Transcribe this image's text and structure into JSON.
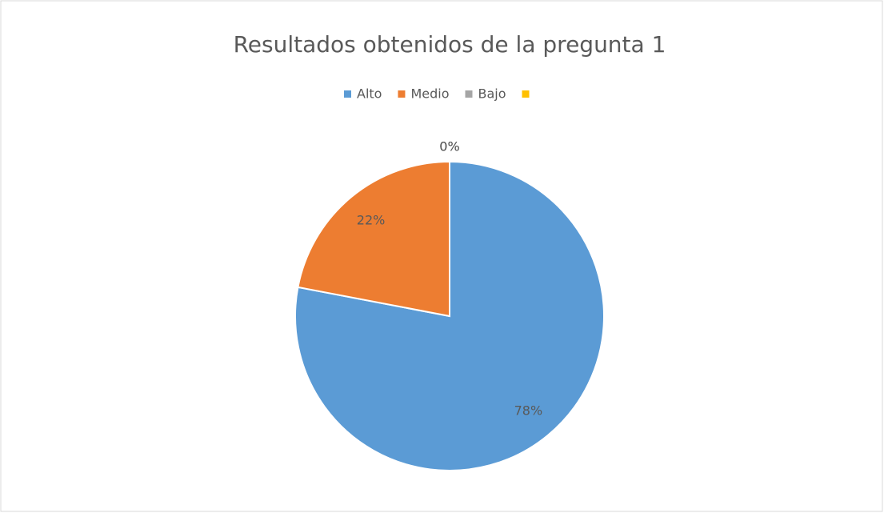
{
  "chart_data": {
    "type": "pie",
    "title": "Resultados obtenidos de la pregunta 1",
    "categories": [
      "Alto",
      "Medio",
      "Bajo",
      null
    ],
    "values": [
      78,
      22,
      0,
      0
    ],
    "colors": [
      "#5b9bd5",
      "#ed7d31",
      "#a5a5a5",
      "#ffc000"
    ],
    "legend": "top"
  }
}
